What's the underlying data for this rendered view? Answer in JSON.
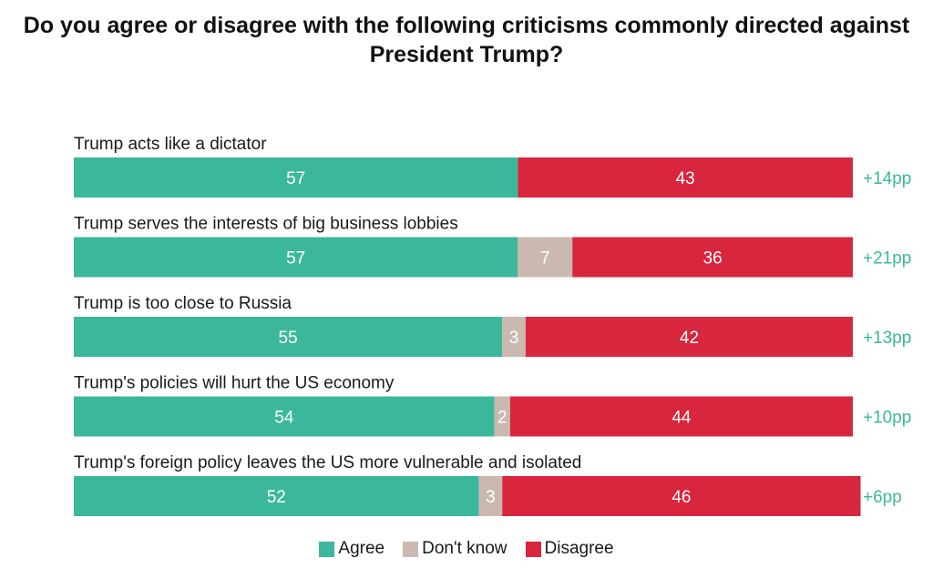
{
  "title_line1": "Do you agree or disagree with the following criticisms commonly directed against",
  "title_line2": "President Trump?",
  "colors": {
    "agree": "#3bb89b",
    "dont_know": "#cbb9b0",
    "disagree": "#d7263d",
    "net": "#3bb89b"
  },
  "chart_data": {
    "type": "bar",
    "orientation": "horizontal",
    "stacked": true,
    "categories": [
      "Trump acts like a dictator",
      "Trump serves the interests of big business lobbies",
      "Trump is too close to Russia",
      "Trump's policies will hurt the US economy",
      "Trump's foreign policy leaves the US more vulnerable and isolated"
    ],
    "series": [
      {
        "name": "Agree",
        "values": [
          57,
          57,
          55,
          54,
          52
        ]
      },
      {
        "name": "Don't know",
        "values": [
          0,
          7,
          3,
          2,
          3
        ]
      },
      {
        "name": "Disagree",
        "values": [
          43,
          36,
          42,
          44,
          46
        ]
      }
    ],
    "net_labels": [
      "+14pp",
      "+21pp",
      "+13pp",
      "+10pp",
      "+6pp"
    ],
    "xlim": [
      0,
      100
    ],
    "legend_position": "bottom",
    "grid": false
  }
}
